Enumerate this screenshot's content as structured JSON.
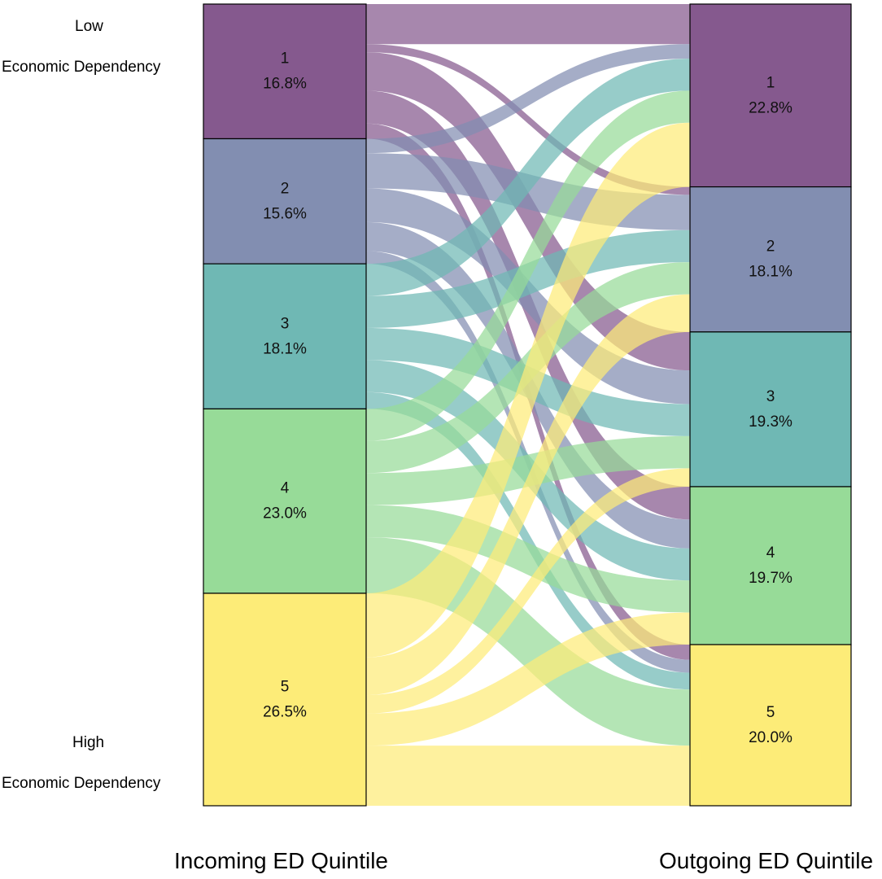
{
  "chart_data": {
    "type": "alluvial",
    "left_axis_title": "Incoming ED Quintile",
    "right_axis_title": "Outgoing ED Quintile",
    "annotations": {
      "top_line1": "Low",
      "top_line2": "Economic Dependency",
      "bottom_line1": "High",
      "bottom_line2": "Economic Dependency"
    },
    "left_nodes": [
      {
        "label": "1",
        "percent": "16.8%",
        "value": 16.8,
        "color": "#85598E"
      },
      {
        "label": "2",
        "percent": "15.6%",
        "value": 15.6,
        "color": "#828EB1"
      },
      {
        "label": "3",
        "percent": "18.1%",
        "value": 18.1,
        "color": "#6FB8B4"
      },
      {
        "label": "4",
        "percent": "23.0%",
        "value": 23.0,
        "color": "#97DB98"
      },
      {
        "label": "5",
        "percent": "26.5%",
        "value": 26.5,
        "color": "#FDEC78"
      }
    ],
    "right_nodes": [
      {
        "label": "1",
        "percent": "22.8%",
        "value": 22.8,
        "color": "#85598E"
      },
      {
        "label": "2",
        "percent": "18.1%",
        "value": 18.1,
        "color": "#828EB1"
      },
      {
        "label": "3",
        "percent": "19.3%",
        "value": 19.3,
        "color": "#6FB8B4"
      },
      {
        "label": "4",
        "percent": "19.7%",
        "value": 19.7,
        "color": "#97DB98"
      },
      {
        "label": "5",
        "percent": "20.0%",
        "value": 20.0,
        "color": "#FDEC78"
      }
    ],
    "flows_from_to": [
      [
        5.0,
        1.0,
        4.8,
        4.1,
        1.9
      ],
      [
        1.8,
        4.4,
        4.2,
        3.6,
        1.6
      ],
      [
        4.0,
        4.0,
        4.0,
        4.0,
        2.1
      ],
      [
        4.0,
        4.0,
        4.0,
        4.0,
        7.0
      ],
      [
        8.0,
        4.7,
        2.3,
        4.0,
        7.5
      ]
    ]
  }
}
